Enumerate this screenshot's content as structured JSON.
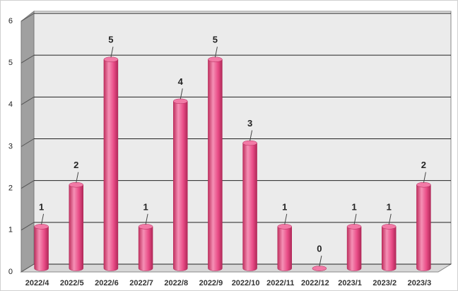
{
  "chart_data": {
    "type": "bar",
    "categories": [
      "2022/4",
      "2022/5",
      "2022/6",
      "2022/7",
      "2022/8",
      "2022/9",
      "2022/10",
      "2022/11",
      "2022/12",
      "2023/1",
      "2023/2",
      "2023/3"
    ],
    "values": [
      1,
      2,
      5,
      1,
      4,
      5,
      3,
      1,
      0,
      1,
      1,
      2
    ],
    "color": "#e94c87",
    "ylim": [
      0,
      6
    ],
    "yticks": [
      0,
      1,
      2,
      3,
      4,
      5,
      6
    ],
    "grid": true
  }
}
